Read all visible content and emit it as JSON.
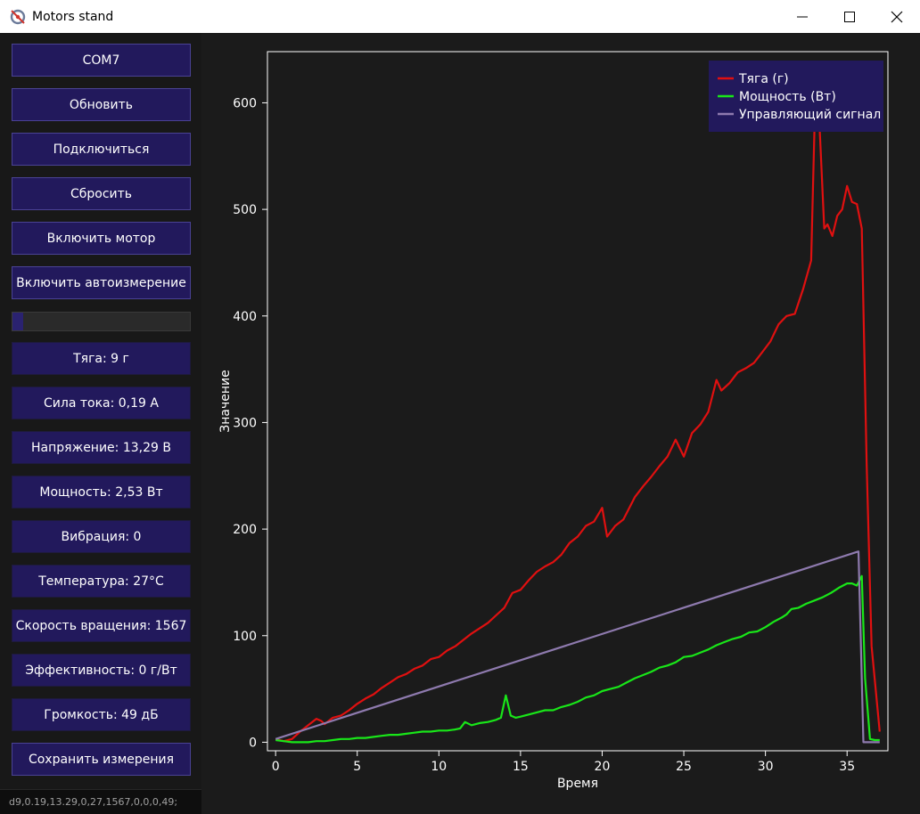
{
  "window": {
    "title": "Motors stand",
    "icons": {
      "app": "motor-app-icon",
      "minimize": "minimize-icon",
      "maximize": "maximize-icon",
      "close": "close-icon"
    }
  },
  "sidebar": {
    "buttons": {
      "port": "COM7",
      "refresh": "Обновить",
      "connect": "Подключиться",
      "reset": "Сбросить",
      "motor": "Включить мотор",
      "auto_measure": "Включить автоизмерение",
      "save": "Сохранить измерения"
    },
    "progress": 0.06,
    "readouts": {
      "thrust": "Тяга: 9 г",
      "current": "Сила тока: 0,19 А",
      "voltage": "Напряжение: 13,29 В",
      "power": "Мощность: 2,53 Вт",
      "vibration": "Вибрация: 0",
      "temperature": "Температура: 27°C",
      "rpm": "Скорость вращения: 1567",
      "efficiency": "Эффективность: 0 г/Вт",
      "loudness": "Громкость: 49 дБ"
    },
    "status": "d9,0.19,13.29,0,27,1567,0,0,0,49;"
  },
  "chart_data": {
    "type": "line",
    "xlabel": "Время",
    "ylabel": "Значение",
    "xlim": [
      -0.5,
      37.5
    ],
    "ylim": [
      -8,
      648
    ],
    "xticks": [
      0,
      5,
      10,
      15,
      20,
      25,
      30,
      35
    ],
    "yticks": [
      0,
      100,
      200,
      300,
      400,
      500,
      600
    ],
    "legend_position": "top-right",
    "colors": {
      "background": "#1b1b1b",
      "legend_bg": "#22195c",
      "axis": "#ffffff"
    },
    "series": [
      {
        "name": "Тяга (г)",
        "color": "#e01010",
        "x": [
          0,
          0.5,
          1,
          1.5,
          2,
          2.5,
          2.8,
          3,
          3.5,
          4,
          4.5,
          5,
          5.5,
          6,
          6.5,
          7,
          7.5,
          8,
          8.5,
          9,
          9.5,
          10,
          10.5,
          11,
          11.5,
          12,
          12.5,
          13,
          13.5,
          14,
          14.5,
          15,
          15.5,
          16,
          16.5,
          17,
          17.5,
          18,
          18.5,
          19,
          19.5,
          20,
          20.3,
          20.8,
          21.3,
          22,
          22.5,
          23,
          23.5,
          24,
          24.5,
          25,
          25.5,
          26,
          26.5,
          27,
          27.3,
          27.8,
          28.3,
          28.8,
          29.3,
          29.8,
          30.3,
          30.8,
          31.3,
          31.8,
          32.3,
          32.8,
          33.1,
          33.3,
          33.6,
          33.8,
          34.1,
          34.4,
          34.7,
          35,
          35.3,
          35.6,
          35.9,
          36.2,
          36.5,
          37
        ],
        "y": [
          3,
          1,
          3,
          10,
          16,
          22,
          20,
          17,
          23,
          25,
          30,
          36,
          41,
          45,
          51,
          56,
          61,
          64,
          69,
          72,
          78,
          80,
          86,
          90,
          96,
          102,
          107,
          112,
          119,
          126,
          140,
          143,
          152,
          160,
          165,
          169,
          176,
          187,
          193,
          203,
          207,
          220,
          193,
          203,
          209,
          230,
          240,
          249,
          259,
          268,
          284,
          268,
          290,
          298,
          310,
          340,
          330,
          337,
          347,
          351,
          356,
          366,
          376,
          392,
          400,
          402,
          425,
          452,
          635,
          582,
          482,
          486,
          475,
          494,
          500,
          522,
          507,
          505,
          482,
          260,
          90,
          10
        ]
      },
      {
        "name": "Мощность (Вт)",
        "color": "#19e619",
        "x": [
          0,
          0.5,
          1,
          1.5,
          2,
          2.5,
          3,
          3.5,
          4,
          4.5,
          5,
          5.5,
          6,
          6.5,
          7,
          7.5,
          8,
          8.5,
          9,
          9.5,
          10,
          10.5,
          11,
          11.3,
          11.6,
          12,
          12.5,
          13,
          13.5,
          13.8,
          14.1,
          14.4,
          14.7,
          15,
          15.5,
          16,
          16.5,
          17,
          17.5,
          18,
          18.5,
          19,
          19.5,
          20,
          20.5,
          21,
          21.5,
          22,
          22.5,
          23,
          23.5,
          24,
          24.5,
          25,
          25.5,
          26,
          26.5,
          27,
          27.5,
          28,
          28.5,
          29,
          29.5,
          30,
          30.5,
          31,
          31.3,
          31.6,
          32,
          32.5,
          33,
          33.5,
          34,
          34.5,
          35,
          35.3,
          35.6,
          35.9,
          36.1,
          36.4,
          36.7,
          37
        ],
        "y": [
          2,
          1,
          0,
          0,
          0,
          1,
          1,
          2,
          3,
          3,
          4,
          4,
          5,
          6,
          7,
          7,
          8,
          9,
          10,
          10,
          11,
          11,
          12,
          13,
          19,
          16,
          18,
          19,
          21,
          23,
          44,
          25,
          23,
          24,
          26,
          28,
          30,
          30,
          33,
          35,
          38,
          42,
          44,
          48,
          50,
          52,
          56,
          60,
          63,
          66,
          70,
          72,
          75,
          80,
          81,
          84,
          87,
          91,
          94,
          97,
          99,
          103,
          104,
          108,
          113,
          117,
          120,
          125,
          126,
          130,
          133,
          136,
          140,
          145,
          149,
          149,
          147,
          156,
          60,
          3,
          2,
          2
        ]
      },
      {
        "name": "Управляющий сигнал",
        "color": "#8e7aae",
        "x": [
          0,
          35.7,
          36,
          37
        ],
        "y": [
          3,
          179,
          0,
          0
        ]
      }
    ]
  }
}
